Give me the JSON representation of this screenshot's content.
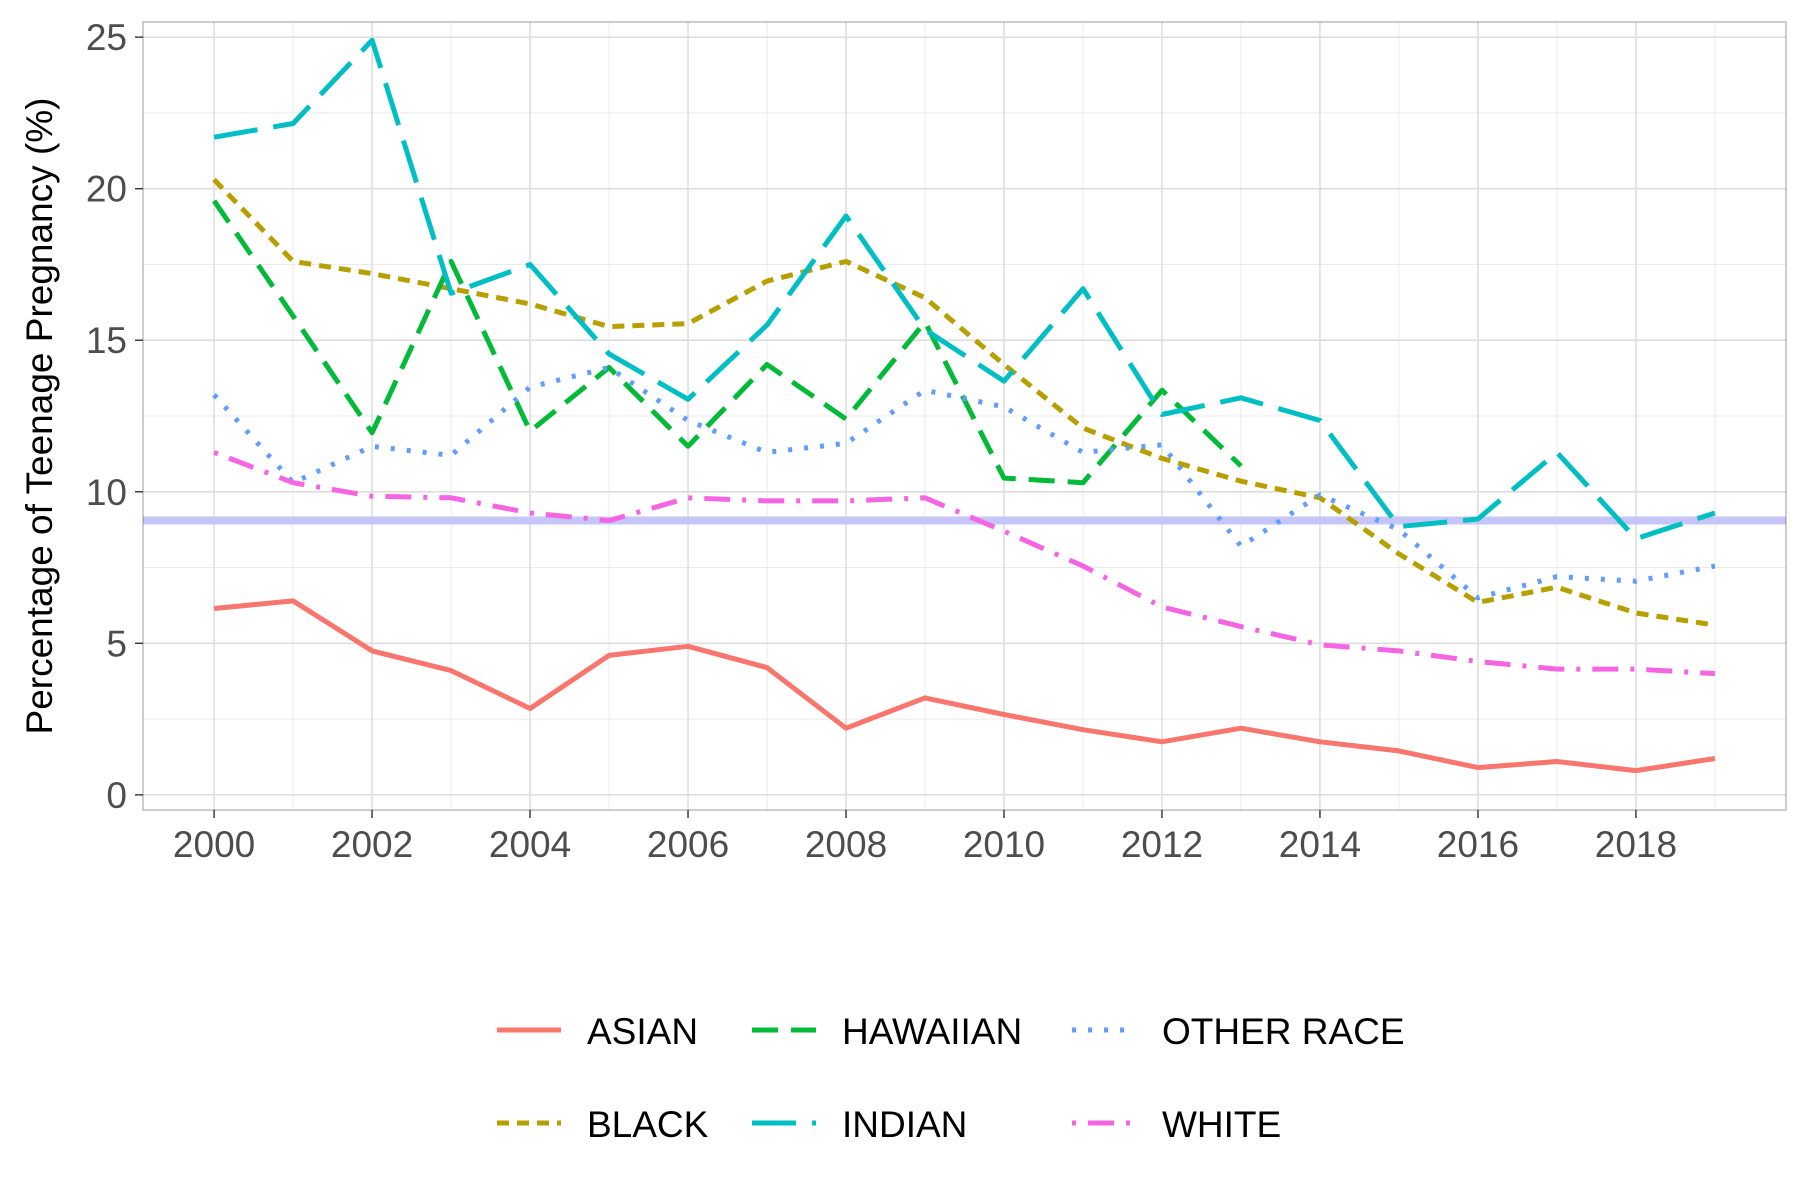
{
  "chart_data": {
    "type": "line",
    "title": "",
    "xlabel": "",
    "ylabel": "Percentage of Teenage Pregnancy (%)",
    "xlim": [
      1999.1,
      2019.9
    ],
    "ylim": [
      -0.5,
      25.5
    ],
    "x_ticks": [
      2000,
      2002,
      2004,
      2006,
      2008,
      2010,
      2012,
      2014,
      2016,
      2018
    ],
    "x_tick_labels": [
      "2000",
      "2002",
      "2004",
      "2006",
      "2008",
      "2010",
      "2012",
      "2014",
      "2016",
      "2018"
    ],
    "y_ticks": [
      0,
      5,
      10,
      15,
      20,
      25
    ],
    "y_tick_labels": [
      "0",
      "5",
      "10",
      "15",
      "20",
      "25"
    ],
    "grid": true,
    "legend_position": "bottom",
    "reference_line": {
      "y": 9.05,
      "color": "#c5c5f7"
    },
    "x": [
      2000,
      2001,
      2002,
      2003,
      2004,
      2005,
      2006,
      2007,
      2008,
      2009,
      2010,
      2011,
      2012,
      2013,
      2014,
      2015,
      2016,
      2017,
      2018,
      2019
    ],
    "series": [
      {
        "name": "ASIAN",
        "color": "#f8766d",
        "dash": "solid",
        "values": [
          6.15,
          6.4,
          4.75,
          4.1,
          2.85,
          4.6,
          4.9,
          4.2,
          2.2,
          3.2,
          2.65,
          2.15,
          1.75,
          2.2,
          1.75,
          1.45,
          0.9,
          1.1,
          0.8,
          1.2
        ]
      },
      {
        "name": "BLACK",
        "color": "#b79f00",
        "dash": "shortdash",
        "values": [
          20.3,
          17.6,
          17.2,
          16.7,
          16.2,
          15.45,
          15.55,
          16.95,
          17.6,
          16.4,
          14.2,
          12.1,
          11.1,
          10.35,
          9.8,
          7.95,
          6.35,
          6.85,
          6.0,
          5.6
        ]
      },
      {
        "name": "HAWAIIAN",
        "color": "#00ba38",
        "dash": "dashed",
        "values": [
          19.6,
          15.8,
          11.95,
          17.6,
          12.0,
          14.1,
          11.5,
          14.2,
          12.4,
          15.6,
          10.45,
          10.3,
          13.35,
          10.85,
          null,
          null,
          null,
          null,
          null,
          null
        ]
      },
      {
        "name": "INDIAN",
        "color": "#00bfc4",
        "dash": "longdash",
        "values": [
          21.7,
          22.15,
          24.9,
          16.55,
          17.5,
          14.55,
          13.05,
          15.5,
          19.1,
          15.35,
          13.65,
          16.7,
          12.55,
          13.1,
          12.35,
          8.85,
          9.1,
          11.3,
          8.45,
          9.3
        ]
      },
      {
        "name": "OTHER RACE",
        "color": "#619cff",
        "dash": "dotted",
        "values": [
          13.2,
          10.3,
          11.5,
          11.2,
          13.45,
          14.1,
          12.35,
          11.3,
          11.6,
          13.35,
          12.8,
          11.3,
          11.55,
          8.2,
          9.9,
          8.75,
          6.5,
          7.2,
          7.05,
          7.55
        ]
      },
      {
        "name": "WHITE",
        "color": "#f564e3",
        "dash": "dotdash",
        "values": [
          11.3,
          10.3,
          9.85,
          9.8,
          9.3,
          9.05,
          9.8,
          9.7,
          9.7,
          9.8,
          8.7,
          7.55,
          6.2,
          5.55,
          4.95,
          4.75,
          4.4,
          4.15,
          4.15,
          4.0
        ]
      }
    ],
    "legend": [
      [
        "ASIAN",
        "HAWAIIAN",
        "OTHER RACE"
      ],
      [
        "BLACK",
        "INDIAN",
        "WHITE"
      ]
    ]
  }
}
